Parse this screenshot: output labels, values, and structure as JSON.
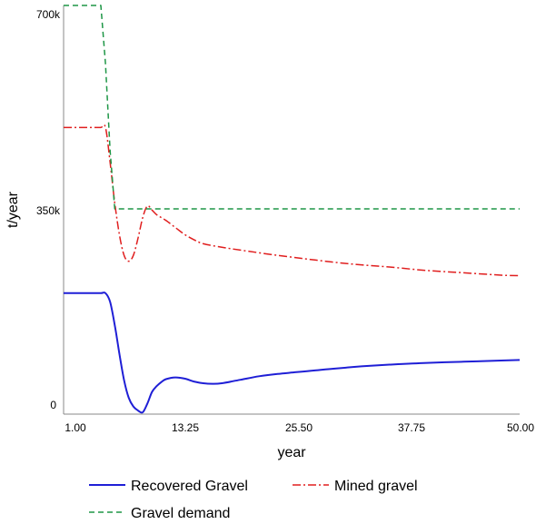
{
  "chart_data": {
    "type": "line",
    "xlabel": "year",
    "ylabel": "t/year",
    "xlim": [
      1,
      50
    ],
    "ylim": [
      0,
      700000
    ],
    "x_ticks": [
      "1.00",
      "13.25",
      "25.50",
      "37.75",
      "50.00"
    ],
    "y_ticks": [
      {
        "value": 0,
        "label": "0"
      },
      {
        "value": 350000,
        "label": "350k"
      },
      {
        "value": 700000,
        "label": "700k"
      }
    ],
    "grid": false,
    "legend_position": "bottom",
    "series": [
      {
        "name": "Recovered Gravel",
        "color": "#1f1fd6",
        "style": "solid",
        "x": [
          1,
          2,
          3,
          4,
          5,
          5.5,
          6,
          6.5,
          7,
          7.5,
          8,
          8.5,
          9,
          9.5,
          10,
          10.5,
          11,
          11.5,
          12,
          13,
          14,
          15,
          16,
          17,
          18,
          20,
          22,
          24,
          26,
          28,
          30,
          33,
          36,
          40,
          44,
          48,
          50
        ],
        "y": [
          205000,
          205000,
          205000,
          205000,
          205000,
          205000,
          190000,
          150000,
          100000,
          55000,
          25000,
          10000,
          3000,
          0,
          15000,
          35000,
          45000,
          52000,
          57000,
          60000,
          58000,
          53000,
          50000,
          49000,
          50000,
          56000,
          62000,
          66000,
          69000,
          72000,
          75000,
          79000,
          82000,
          85000,
          87000,
          89000,
          90000
        ]
      },
      {
        "name": "Mined gravel",
        "color": "#e01e1e",
        "style": "dashdot",
        "x": [
          1,
          2,
          3,
          4,
          5,
          5.5,
          6,
          6.5,
          7,
          7.5,
          8,
          8.5,
          9,
          9.5,
          10,
          10.5,
          11,
          11.5,
          12,
          13,
          14,
          15,
          16,
          18,
          20,
          24,
          28,
          32,
          36,
          40,
          44,
          48,
          50
        ],
        "y": [
          490000,
          490000,
          490000,
          490000,
          490000,
          490000,
          430000,
          360000,
          305000,
          270000,
          260000,
          270000,
          300000,
          335000,
          355000,
          348000,
          340000,
          335000,
          330000,
          318000,
          306000,
          297000,
          290000,
          284000,
          279000,
          270000,
          262000,
          255000,
          250000,
          244000,
          240000,
          236000,
          235000
        ]
      },
      {
        "name": "Gravel demand",
        "color": "#1e9646",
        "style": "dashed",
        "x": [
          1,
          5,
          5.5,
          6,
          6.5,
          50
        ],
        "y": [
          700000,
          700000,
          600000,
          450000,
          350000,
          350000
        ]
      }
    ]
  }
}
